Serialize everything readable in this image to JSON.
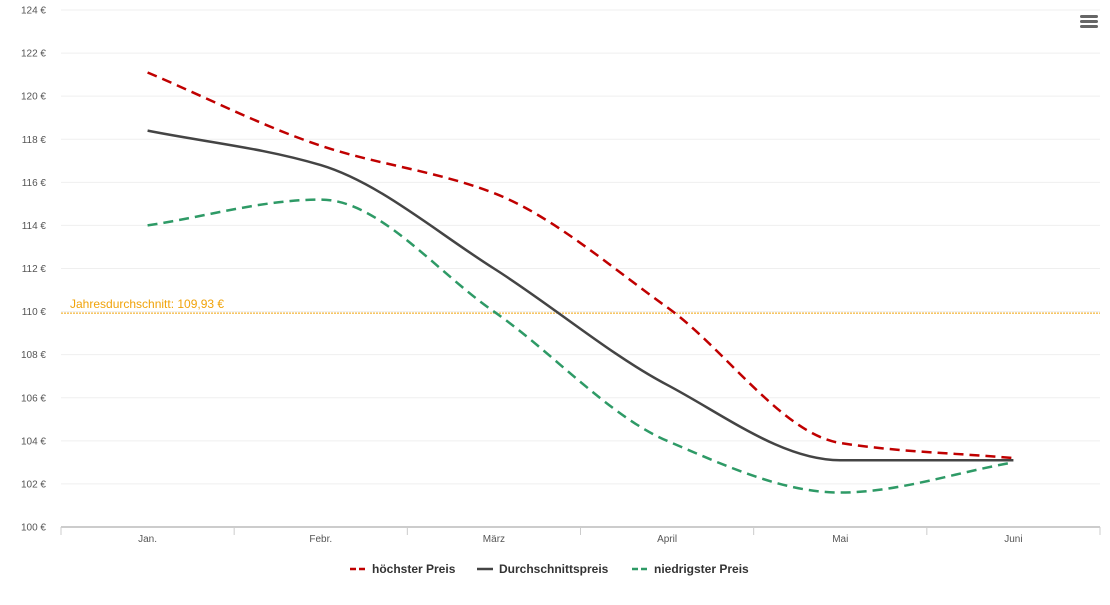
{
  "chart_data": {
    "type": "line",
    "categories": [
      "Jan.",
      "Febr.",
      "März",
      "April",
      "Mai",
      "Juni"
    ],
    "ylim": [
      100,
      124
    ],
    "y_tick_step": 2,
    "y_tick_labels": [
      "100 €",
      "102 €",
      "104 €",
      "106 €",
      "108 €",
      "110 €",
      "112 €",
      "114 €",
      "116 €",
      "118 €",
      "120 €",
      "122 €",
      "124 €"
    ],
    "series": [
      {
        "name": "höchster Preis",
        "color": "#c00000",
        "dash": "dashed",
        "values": [
          121.1,
          117.7,
          115.5,
          110.2,
          103.9,
          103.2
        ]
      },
      {
        "name": "Durchschnittspreis",
        "color": "#444444",
        "dash": "solid",
        "values": [
          118.4,
          116.8,
          112.0,
          106.6,
          103.1,
          103.1
        ]
      },
      {
        "name": "niedrigster Preis",
        "color": "#2e9a66",
        "dash": "dashed",
        "values": [
          114.0,
          115.2,
          110.0,
          104.0,
          101.6,
          103.0
        ]
      }
    ],
    "average_line": {
      "label": "Jahresdurchschnitt: 109,93 €",
      "value": 109.93,
      "color": "#f0a30a"
    },
    "legend_position": "bottom-center",
    "grid": true
  },
  "menu": {
    "icon": "hamburger-menu-icon"
  }
}
